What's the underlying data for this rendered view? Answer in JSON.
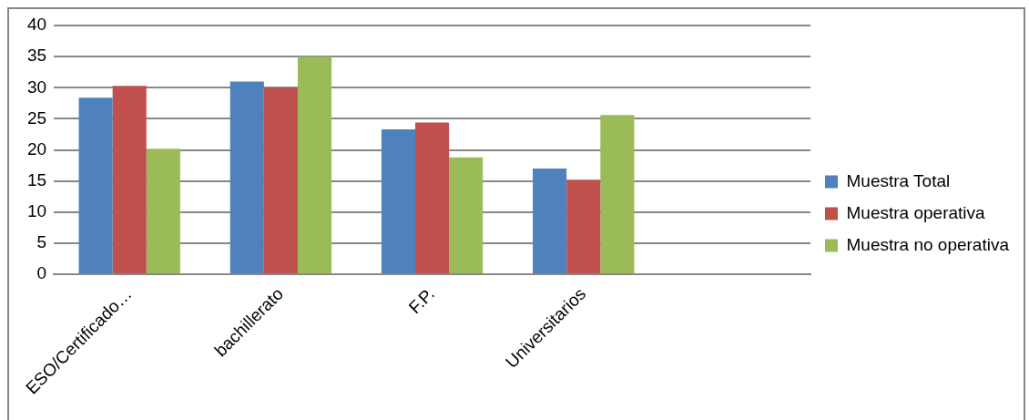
{
  "chart_data": {
    "type": "bar",
    "categories": [
      "ESO/Certificado…",
      "bachillerato",
      "F.P.",
      "Universitarios",
      null
    ],
    "series": [
      {
        "name": "Muestra Total",
        "color": "#4f81bd",
        "values": [
          28.4,
          31.0,
          23.3,
          17.0,
          null
        ]
      },
      {
        "name": "Muestra operativa",
        "color": "#c0504d",
        "values": [
          30.3,
          30.0,
          24.4,
          15.2,
          null
        ]
      },
      {
        "name": "Muestra no operativa",
        "color": "#9bbb59",
        "values": [
          20.2,
          35.0,
          18.8,
          25.6,
          null
        ]
      }
    ],
    "ylim": [
      0,
      40
    ],
    "yticks": [
      0,
      5,
      10,
      15,
      20,
      25,
      30,
      35,
      40
    ],
    "grid": "y",
    "legend": "right"
  }
}
